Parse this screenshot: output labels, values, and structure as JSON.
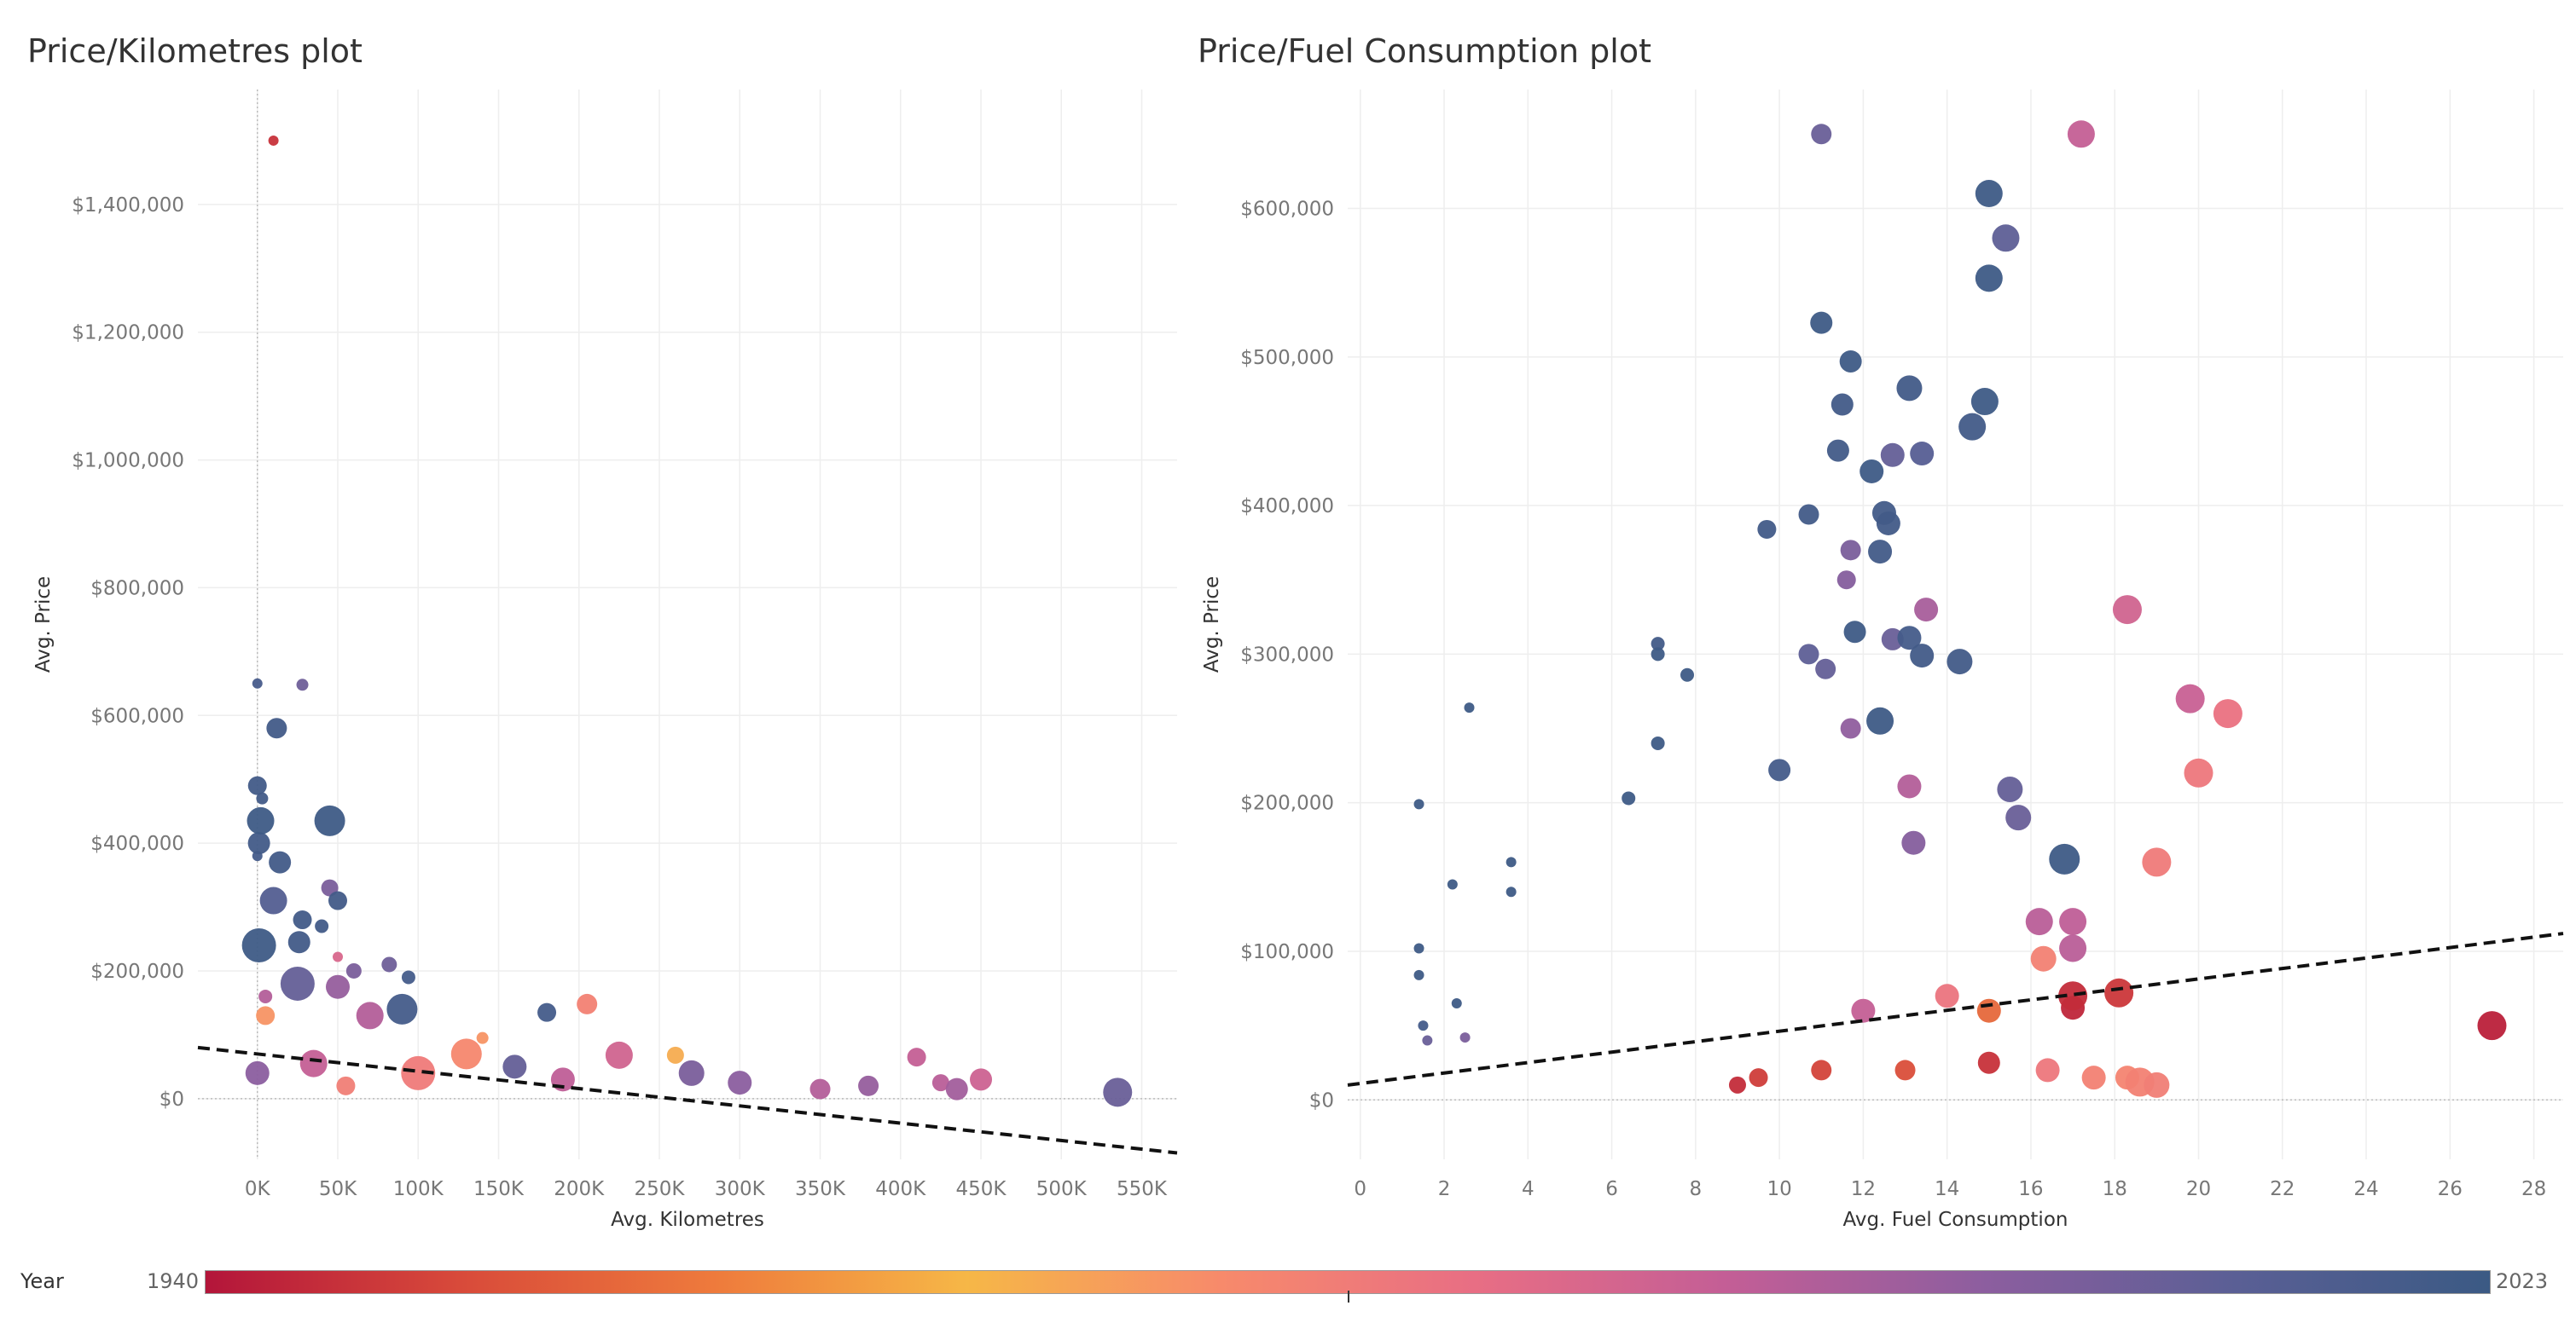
{
  "legend": {
    "label": "Year",
    "min_label": "1940",
    "max_label": "2023",
    "colors": [
      "#b3153a",
      "#d84a3a",
      "#ee7a3c",
      "#f6b747",
      "#f78a6b",
      "#e86e84",
      "#c35e96",
      "#8d5e9f",
      "#5a5f95",
      "#3b5a84"
    ]
  },
  "chart_data": [
    {
      "type": "scatter",
      "title": "Price/Kilometres plot",
      "xlabel": "Avg. Kilometres",
      "ylabel": "Avg. Price",
      "xlim": [
        -37000,
        572000
      ],
      "ylim": [
        -95000,
        1580000
      ],
      "x_ticks": [
        0,
        50000,
        100000,
        150000,
        200000,
        250000,
        300000,
        350000,
        400000,
        450000,
        500000,
        550000
      ],
      "x_tick_labels": [
        "0K",
        "50K",
        "100K",
        "150K",
        "200K",
        "250K",
        "300K",
        "350K",
        "400K",
        "450K",
        "500K",
        "550K"
      ],
      "y_ticks": [
        0,
        200000,
        400000,
        600000,
        800000,
        1000000,
        1200000,
        1400000
      ],
      "y_tick_labels": [
        "$0",
        "$200,000",
        "$400,000",
        "$600,000",
        "$800,000",
        "$1,000,000",
        "$1,200,000",
        "$1,400,000"
      ],
      "trend_line": {
        "x": [
          -37000,
          572000
        ],
        "y": [
          80000,
          -85000
        ]
      },
      "points": [
        {
          "x": 10000,
          "y": 1500000,
          "year": 1945,
          "size": 6
        },
        {
          "x": 0,
          "y": 650000,
          "year": 2019,
          "size": 6
        },
        {
          "x": 28000,
          "y": 648000,
          "year": 2010,
          "size": 7
        },
        {
          "x": 12000,
          "y": 580000,
          "year": 2021,
          "size": 12
        },
        {
          "x": 0,
          "y": 490000,
          "year": 2021,
          "size": 11
        },
        {
          "x": 3000,
          "y": 470000,
          "year": 2021,
          "size": 7
        },
        {
          "x": 2000,
          "y": 435000,
          "year": 2022,
          "size": 16
        },
        {
          "x": 45000,
          "y": 435000,
          "year": 2022,
          "size": 18
        },
        {
          "x": 1000,
          "y": 400000,
          "year": 2021,
          "size": 13
        },
        {
          "x": 0,
          "y": 380000,
          "year": 2020,
          "size": 6
        },
        {
          "x": 14000,
          "y": 370000,
          "year": 2021,
          "size": 13
        },
        {
          "x": 45000,
          "y": 330000,
          "year": 2008,
          "size": 10
        },
        {
          "x": 50000,
          "y": 310000,
          "year": 2021,
          "size": 11
        },
        {
          "x": 10000,
          "y": 310000,
          "year": 2016,
          "size": 16
        },
        {
          "x": 28000,
          "y": 280000,
          "year": 2021,
          "size": 11
        },
        {
          "x": 40000,
          "y": 270000,
          "year": 2021,
          "size": 8
        },
        {
          "x": 26000,
          "y": 245000,
          "year": 2021,
          "size": 13
        },
        {
          "x": 1000,
          "y": 240000,
          "year": 2022,
          "size": 20
        },
        {
          "x": 50000,
          "y": 222000,
          "year": 1990,
          "size": 6
        },
        {
          "x": 60000,
          "y": 200000,
          "year": 2008,
          "size": 9
        },
        {
          "x": 82000,
          "y": 210000,
          "year": 2010,
          "size": 9
        },
        {
          "x": 94000,
          "y": 190000,
          "year": 2020,
          "size": 8
        },
        {
          "x": 25000,
          "y": 180000,
          "year": 2012,
          "size": 20
        },
        {
          "x": 50000,
          "y": 175000,
          "year": 2003,
          "size": 14
        },
        {
          "x": 5000,
          "y": 160000,
          "year": 1998,
          "size": 8
        },
        {
          "x": 5000,
          "y": 130000,
          "year": 1975,
          "size": 11
        },
        {
          "x": 70000,
          "y": 130000,
          "year": 1998,
          "size": 16
        },
        {
          "x": 90000,
          "y": 140000,
          "year": 2020,
          "size": 18
        },
        {
          "x": 180000,
          "y": 135000,
          "year": 2020,
          "size": 11
        },
        {
          "x": 205000,
          "y": 148000,
          "year": 1980,
          "size": 12
        },
        {
          "x": 140000,
          "y": 95000,
          "year": 1975,
          "size": 7
        },
        {
          "x": 130000,
          "y": 70000,
          "year": 1978,
          "size": 18
        },
        {
          "x": 225000,
          "y": 68000,
          "year": 1992,
          "size": 16
        },
        {
          "x": 260000,
          "y": 68000,
          "year": 1970,
          "size": 10
        },
        {
          "x": 410000,
          "y": 65000,
          "year": 1995,
          "size": 11
        },
        {
          "x": 450000,
          "y": 30000,
          "year": 1993,
          "size": 13
        },
        {
          "x": 435000,
          "y": 15000,
          "year": 2001,
          "size": 13
        },
        {
          "x": 425000,
          "y": 25000,
          "year": 1997,
          "size": 10
        },
        {
          "x": 535000,
          "y": 10000,
          "year": 2011,
          "size": 17
        },
        {
          "x": 100000,
          "y": 40000,
          "year": 1982,
          "size": 20
        },
        {
          "x": 55000,
          "y": 20000,
          "year": 1981,
          "size": 11
        },
        {
          "x": 0,
          "y": 40000,
          "year": 2005,
          "size": 14
        },
        {
          "x": 35000,
          "y": 55000,
          "year": 1995,
          "size": 16
        },
        {
          "x": 190000,
          "y": 30000,
          "year": 1996,
          "size": 14
        },
        {
          "x": 300000,
          "y": 25000,
          "year": 2005,
          "size": 14
        },
        {
          "x": 350000,
          "y": 15000,
          "year": 1998,
          "size": 12
        },
        {
          "x": 380000,
          "y": 20000,
          "year": 2003,
          "size": 12
        },
        {
          "x": 270000,
          "y": 40000,
          "year": 2008,
          "size": 15
        },
        {
          "x": 160000,
          "y": 50000,
          "year": 2012,
          "size": 14
        }
      ]
    },
    {
      "type": "scatter",
      "title": "Price/Fuel Consumption plot",
      "xlabel": "Avg. Fuel Consumption",
      "ylabel": "Avg. Price",
      "xlim": [
        -0.3,
        28.7
      ],
      "ylim": [
        -40000,
        680000
      ],
      "x_ticks": [
        0,
        2,
        4,
        6,
        8,
        10,
        12,
        14,
        16,
        18,
        20,
        22,
        24,
        26,
        28
      ],
      "x_tick_labels": [
        "0",
        "2",
        "4",
        "6",
        "8",
        "10",
        "12",
        "14",
        "16",
        "18",
        "20",
        "22",
        "24",
        "26",
        "28"
      ],
      "y_ticks": [
        0,
        100000,
        200000,
        300000,
        400000,
        500000,
        600000
      ],
      "y_tick_labels": [
        "$0",
        "$100,000",
        "$200,000",
        "$300,000",
        "$400,000",
        "$500,000",
        "$600,000"
      ],
      "trend_line": {
        "x": [
          -0.3,
          28.7
        ],
        "y": [
          10000,
          112000
        ]
      },
      "points": [
        {
          "x": 11.0,
          "y": 650000,
          "year": 2011,
          "size": 12
        },
        {
          "x": 17.2,
          "y": 650000,
          "year": 1995,
          "size": 16
        },
        {
          "x": 15.0,
          "y": 610000,
          "year": 2022,
          "size": 16
        },
        {
          "x": 15.4,
          "y": 580000,
          "year": 2013,
          "size": 16
        },
        {
          "x": 15.0,
          "y": 553000,
          "year": 2022,
          "size": 16
        },
        {
          "x": 11.0,
          "y": 523000,
          "year": 2022,
          "size": 13
        },
        {
          "x": 11.7,
          "y": 497000,
          "year": 2022,
          "size": 13
        },
        {
          "x": 13.1,
          "y": 479000,
          "year": 2021,
          "size": 15
        },
        {
          "x": 14.9,
          "y": 470000,
          "year": 2022,
          "size": 16
        },
        {
          "x": 11.5,
          "y": 468000,
          "year": 2021,
          "size": 13
        },
        {
          "x": 14.6,
          "y": 453000,
          "year": 2021,
          "size": 16
        },
        {
          "x": 11.4,
          "y": 437000,
          "year": 2021,
          "size": 13
        },
        {
          "x": 12.7,
          "y": 434000,
          "year": 2012,
          "size": 14
        },
        {
          "x": 13.4,
          "y": 435000,
          "year": 2015,
          "size": 14
        },
        {
          "x": 12.2,
          "y": 423000,
          "year": 2022,
          "size": 14
        },
        {
          "x": 10.7,
          "y": 394000,
          "year": 2021,
          "size": 12
        },
        {
          "x": 12.5,
          "y": 395000,
          "year": 2021,
          "size": 14
        },
        {
          "x": 12.6,
          "y": 388000,
          "year": 2021,
          "size": 14
        },
        {
          "x": 9.7,
          "y": 384000,
          "year": 2021,
          "size": 11
        },
        {
          "x": 11.7,
          "y": 370000,
          "year": 2008,
          "size": 12
        },
        {
          "x": 12.4,
          "y": 369000,
          "year": 2021,
          "size": 14
        },
        {
          "x": 11.6,
          "y": 350000,
          "year": 2006,
          "size": 11
        },
        {
          "x": 13.5,
          "y": 330000,
          "year": 2000,
          "size": 14
        },
        {
          "x": 18.3,
          "y": 330000,
          "year": 1992,
          "size": 17
        },
        {
          "x": 11.8,
          "y": 315000,
          "year": 2022,
          "size": 13
        },
        {
          "x": 13.1,
          "y": 311000,
          "year": 2020,
          "size": 14
        },
        {
          "x": 12.7,
          "y": 310000,
          "year": 2011,
          "size": 13
        },
        {
          "x": 7.1,
          "y": 307000,
          "year": 2021,
          "size": 8
        },
        {
          "x": 7.1,
          "y": 300000,
          "year": 2022,
          "size": 8
        },
        {
          "x": 10.7,
          "y": 300000,
          "year": 2013,
          "size": 12
        },
        {
          "x": 13.4,
          "y": 299000,
          "year": 2021,
          "size": 14
        },
        {
          "x": 14.3,
          "y": 295000,
          "year": 2021,
          "size": 15
        },
        {
          "x": 11.1,
          "y": 290000,
          "year": 2012,
          "size": 12
        },
        {
          "x": 7.8,
          "y": 286000,
          "year": 2022,
          "size": 8
        },
        {
          "x": 2.6,
          "y": 264000,
          "year": 2022,
          "size": 6
        },
        {
          "x": 19.8,
          "y": 270000,
          "year": 1994,
          "size": 17
        },
        {
          "x": 20.7,
          "y": 260000,
          "year": 1985,
          "size": 17
        },
        {
          "x": 12.4,
          "y": 255000,
          "year": 2022,
          "size": 16
        },
        {
          "x": 11.7,
          "y": 250000,
          "year": 2004,
          "size": 12
        },
        {
          "x": 7.1,
          "y": 240000,
          "year": 2022,
          "size": 8
        },
        {
          "x": 10.0,
          "y": 222000,
          "year": 2020,
          "size": 13
        },
        {
          "x": 20.0,
          "y": 220000,
          "year": 1983,
          "size": 17
        },
        {
          "x": 13.1,
          "y": 211000,
          "year": 1998,
          "size": 14
        },
        {
          "x": 15.5,
          "y": 209000,
          "year": 2012,
          "size": 15
        },
        {
          "x": 6.4,
          "y": 203000,
          "year": 2022,
          "size": 8
        },
        {
          "x": 1.4,
          "y": 199000,
          "year": 2022,
          "size": 6
        },
        {
          "x": 15.7,
          "y": 190000,
          "year": 2011,
          "size": 15
        },
        {
          "x": 13.2,
          "y": 173000,
          "year": 2006,
          "size": 14
        },
        {
          "x": 16.8,
          "y": 162000,
          "year": 2022,
          "size": 18
        },
        {
          "x": 19.0,
          "y": 160000,
          "year": 1982,
          "size": 17
        },
        {
          "x": 3.6,
          "y": 160000,
          "year": 2022,
          "size": 6
        },
        {
          "x": 2.2,
          "y": 145000,
          "year": 2022,
          "size": 6
        },
        {
          "x": 3.6,
          "y": 140000,
          "year": 2022,
          "size": 6
        },
        {
          "x": 16.2,
          "y": 120000,
          "year": 1997,
          "size": 16
        },
        {
          "x": 17.0,
          "y": 120000,
          "year": 1996,
          "size": 16
        },
        {
          "x": 17.0,
          "y": 102000,
          "year": 1997,
          "size": 16
        },
        {
          "x": 17.0,
          "y": 70000,
          "year": 1944,
          "size": 17
        },
        {
          "x": 18.1,
          "y": 72000,
          "year": 1946,
          "size": 17
        },
        {
          "x": 17.0,
          "y": 62000,
          "year": 1943,
          "size": 14
        },
        {
          "x": 27.0,
          "y": 50000,
          "year": 1942,
          "size": 17
        },
        {
          "x": 16.3,
          "y": 95000,
          "year": 1980,
          "size": 15
        },
        {
          "x": 1.4,
          "y": 102000,
          "year": 2022,
          "size": 6
        },
        {
          "x": 1.4,
          "y": 84000,
          "year": 2022,
          "size": 6
        },
        {
          "x": 1.5,
          "y": 50000,
          "year": 2020,
          "size": 6
        },
        {
          "x": 1.6,
          "y": 40000,
          "year": 2011,
          "size": 6
        },
        {
          "x": 2.3,
          "y": 65000,
          "year": 2022,
          "size": 6
        },
        {
          "x": 2.5,
          "y": 42000,
          "year": 2008,
          "size": 6
        },
        {
          "x": 17.5,
          "y": 15000,
          "year": 1980,
          "size": 14
        },
        {
          "x": 18.3,
          "y": 15000,
          "year": 1979,
          "size": 14
        },
        {
          "x": 18.6,
          "y": 12000,
          "year": 1980,
          "size": 17
        },
        {
          "x": 19.0,
          "y": 10000,
          "year": 1981,
          "size": 15
        },
        {
          "x": 16.4,
          "y": 20000,
          "year": 1983,
          "size": 14
        },
        {
          "x": 15.0,
          "y": 25000,
          "year": 1945,
          "size": 13
        },
        {
          "x": 13.0,
          "y": 20000,
          "year": 1950,
          "size": 12
        },
        {
          "x": 11.0,
          "y": 20000,
          "year": 1948,
          "size": 12
        },
        {
          "x": 9.5,
          "y": 15000,
          "year": 1947,
          "size": 11
        },
        {
          "x": 9.0,
          "y": 10000,
          "year": 1944,
          "size": 10
        },
        {
          "x": 15.0,
          "y": 60000,
          "year": 1955,
          "size": 14
        },
        {
          "x": 14.0,
          "y": 70000,
          "year": 1984,
          "size": 14
        },
        {
          "x": 12.0,
          "y": 60000,
          "year": 1995,
          "size": 14
        }
      ]
    }
  ]
}
